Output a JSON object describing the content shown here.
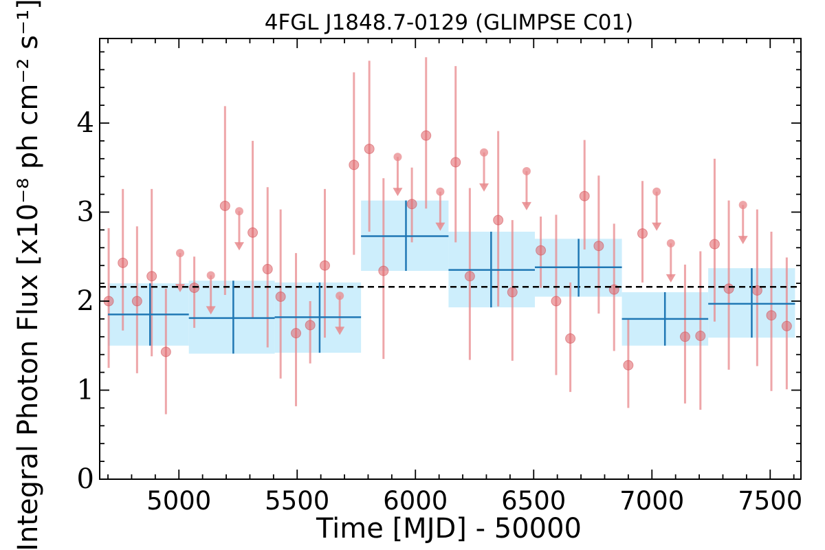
{
  "chart_data": {
    "type": "scatter",
    "title": "4FGL J1848.7-0129 (GLIMPSE C01)",
    "xlabel": "Time [MJD] - 50000",
    "ylabel": "Integral Photon Flux [x10⁻⁸ ph cm⁻² s⁻¹]",
    "xlim": [
      4665,
      7630
    ],
    "ylim": [
      0,
      4.95
    ],
    "xticks": [
      5000,
      5500,
      6000,
      6500,
      7000,
      7500
    ],
    "xtick_labels": [
      "5000",
      "5500",
      "6000",
      "6500",
      "7000",
      "7500"
    ],
    "yticks": [
      0,
      1,
      2,
      3,
      4
    ],
    "ytick_labels": [
      "0",
      "1",
      "2",
      "3",
      "4"
    ],
    "average_flux": 2.16,
    "colors": {
      "short_bins": "#e8888c",
      "long_bins": "#1f77b4",
      "long_bins_band": "#cdeefc",
      "average_line": "#000000"
    },
    "series": [
      {
        "kind": "detections",
        "points": [
          {
            "x": 4703,
            "y": 2.0,
            "lo": 1.25,
            "hi": 2.82
          },
          {
            "x": 4763,
            "y": 2.43,
            "lo": 1.67,
            "hi": 3.26
          },
          {
            "x": 4823,
            "y": 2.0,
            "lo": 1.19,
            "hi": 2.84
          },
          {
            "x": 4885,
            "y": 2.28,
            "lo": 1.38,
            "hi": 3.26
          },
          {
            "x": 4945,
            "y": 1.43,
            "lo": 0.73,
            "hi": 2.14
          },
          {
            "x": 5065,
            "y": 2.15,
            "lo": 1.7,
            "hi": 2.5
          },
          {
            "x": 5195,
            "y": 3.07,
            "lo": 2.07,
            "hi": 4.19
          },
          {
            "x": 5312,
            "y": 2.77,
            "lo": 1.81,
            "hi": 3.8
          },
          {
            "x": 5375,
            "y": 2.36,
            "lo": 1.48,
            "hi": 3.28
          },
          {
            "x": 5430,
            "y": 2.05,
            "lo": 1.13,
            "hi": 3.03
          },
          {
            "x": 5495,
            "y": 1.64,
            "lo": 0.82,
            "hi": 2.54
          },
          {
            "x": 5555,
            "y": 1.73,
            "lo": 1.3,
            "hi": 2.0
          },
          {
            "x": 5617,
            "y": 2.4,
            "lo": 1.59,
            "hi": 3.26
          },
          {
            "x": 5740,
            "y": 3.53,
            "lo": 2.52,
            "hi": 4.57
          },
          {
            "x": 5805,
            "y": 3.71,
            "lo": 2.78,
            "hi": 4.7
          },
          {
            "x": 5865,
            "y": 2.34,
            "lo": 1.35,
            "hi": 3.38
          },
          {
            "x": 5985,
            "y": 3.09,
            "lo": 2.66,
            "hi": 3.5
          },
          {
            "x": 6045,
            "y": 3.86,
            "lo": 3.04,
            "hi": 4.74
          },
          {
            "x": 6170,
            "y": 3.56,
            "lo": 2.66,
            "hi": 4.64
          },
          {
            "x": 6230,
            "y": 2.28,
            "lo": 1.34,
            "hi": 3.27
          },
          {
            "x": 6350,
            "y": 2.91,
            "lo": 1.94,
            "hi": 3.91
          },
          {
            "x": 6410,
            "y": 2.1,
            "lo": 1.33,
            "hi": 2.91
          },
          {
            "x": 6530,
            "y": 2.57,
            "lo": 2.15,
            "hi": 2.95
          },
          {
            "x": 6595,
            "y": 2.0,
            "lo": 1.17,
            "hi": 2.97
          },
          {
            "x": 6655,
            "y": 1.58,
            "lo": 0.98,
            "hi": 2.21
          },
          {
            "x": 6715,
            "y": 3.18,
            "lo": 2.58,
            "hi": 3.81
          },
          {
            "x": 6775,
            "y": 2.62,
            "lo": 1.86,
            "hi": 3.41
          },
          {
            "x": 6840,
            "y": 2.13,
            "lo": 1.44,
            "hi": 2.87
          },
          {
            "x": 6900,
            "y": 1.28,
            "lo": 0.8,
            "hi": 1.8
          },
          {
            "x": 6960,
            "y": 2.76,
            "lo": 2.21,
            "hi": 3.35
          },
          {
            "x": 7140,
            "y": 1.6,
            "lo": 0.85,
            "hi": 2.41
          },
          {
            "x": 7205,
            "y": 1.61,
            "lo": 0.78,
            "hi": 2.56
          },
          {
            "x": 7265,
            "y": 2.64,
            "lo": 1.77,
            "hi": 3.6
          },
          {
            "x": 7325,
            "y": 2.14,
            "lo": 1.23,
            "hi": 3.13
          },
          {
            "x": 7445,
            "y": 2.12,
            "lo": 1.27,
            "hi": 3.03
          },
          {
            "x": 7505,
            "y": 1.84,
            "lo": 0.99,
            "hi": 2.78
          },
          {
            "x": 7570,
            "y": 1.72,
            "lo": 1.01,
            "hi": 2.49
          }
        ]
      },
      {
        "kind": "upper_limits",
        "points": [
          {
            "x": 5005,
            "y": 2.54
          },
          {
            "x": 5135,
            "y": 2.29
          },
          {
            "x": 5255,
            "y": 3.01
          },
          {
            "x": 5680,
            "y": 2.06
          },
          {
            "x": 5925,
            "y": 3.62
          },
          {
            "x": 6105,
            "y": 3.23
          },
          {
            "x": 6290,
            "y": 3.67
          },
          {
            "x": 6470,
            "y": 3.46
          },
          {
            "x": 7020,
            "y": 3.23
          },
          {
            "x": 7080,
            "y": 2.65
          },
          {
            "x": 7385,
            "y": 3.08
          }
        ]
      },
      {
        "kind": "long_bins",
        "points": [
          {
            "x0": 4700,
            "x1": 5042,
            "xc": 4878,
            "y": 1.85,
            "lo": 1.5,
            "hi": 2.2
          },
          {
            "x0": 5042,
            "x1": 5405,
            "xc": 5230,
            "y": 1.81,
            "lo": 1.41,
            "hi": 2.23
          },
          {
            "x0": 5405,
            "x1": 5770,
            "xc": 5595,
            "y": 1.82,
            "lo": 1.42,
            "hi": 2.21
          },
          {
            "x0": 5770,
            "x1": 6140,
            "xc": 5960,
            "y": 2.73,
            "lo": 2.34,
            "hi": 3.13
          },
          {
            "x0": 6140,
            "x1": 6505,
            "xc": 6320,
            "y": 2.35,
            "lo": 1.93,
            "hi": 2.78
          },
          {
            "x0": 6505,
            "x1": 6873,
            "xc": 6690,
            "y": 2.38,
            "lo": 2.05,
            "hi": 2.7
          },
          {
            "x0": 6873,
            "x1": 7238,
            "xc": 7055,
            "y": 1.8,
            "lo": 1.5,
            "hi": 2.1
          },
          {
            "x0": 7238,
            "x1": 7605,
            "xc": 7422,
            "y": 1.97,
            "lo": 1.59,
            "hi": 2.37
          }
        ]
      }
    ]
  }
}
